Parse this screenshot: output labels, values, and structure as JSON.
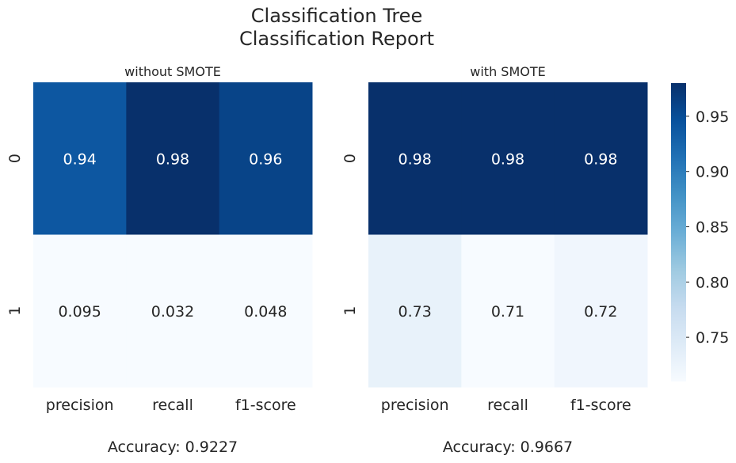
{
  "suptitle_line1": "Classification Tree",
  "suptitle_line2": "Classification Report",
  "colormap": {
    "low": "#f7fbff",
    "mid": "#6baed6",
    "high": "#08306b",
    "vmin": 0.71,
    "vmax": 0.98
  },
  "chart_data": [
    {
      "type": "heatmap",
      "title": "without SMOTE",
      "columns": [
        "precision",
        "recall",
        "f1-score"
      ],
      "rows": [
        "0",
        "1"
      ],
      "values": [
        [
          0.94,
          0.98,
          0.96
        ],
        [
          0.095,
          0.032,
          0.048
        ]
      ],
      "annotations": [
        [
          "0.94",
          "0.98",
          "0.96"
        ],
        [
          "0.095",
          "0.032",
          "0.048"
        ]
      ],
      "xlabel": "Accuracy: 0.9227"
    },
    {
      "type": "heatmap",
      "title": "with SMOTE",
      "columns": [
        "precision",
        "recall",
        "f1-score"
      ],
      "rows": [
        "0",
        "1"
      ],
      "values": [
        [
          0.98,
          0.98,
          0.98
        ],
        [
          0.73,
          0.71,
          0.72
        ]
      ],
      "annotations": [
        [
          "0.98",
          "0.98",
          "0.98"
        ],
        [
          "0.73",
          "0.71",
          "0.72"
        ]
      ],
      "xlabel": "Accuracy: 0.9667"
    }
  ],
  "colorbar": {
    "ticks": [
      0.75,
      0.8,
      0.85,
      0.9,
      0.95
    ],
    "tick_labels": [
      "0.75",
      "0.80",
      "0.85",
      "0.90",
      "0.95"
    ]
  }
}
